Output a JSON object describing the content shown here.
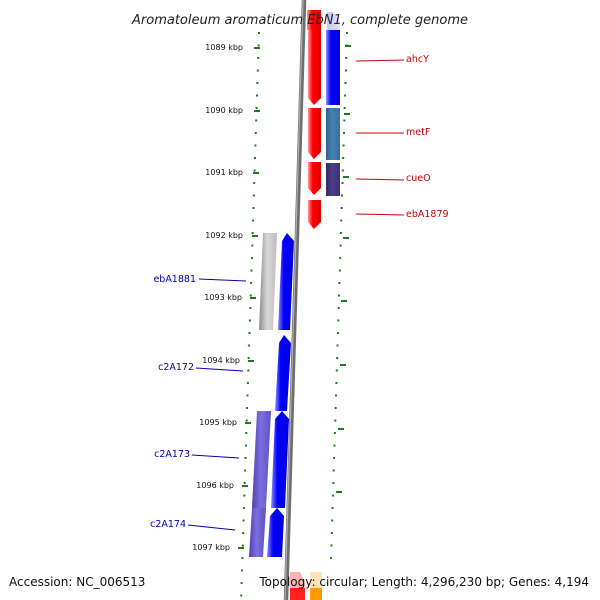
{
  "title": "Aromatoleum aromaticum EbN1, complete genome",
  "accession_label": "Accession: NC_006513",
  "topology_label": "Topology: circular; Length: 4,296,230 bp; Genes: 4,194",
  "ruler": {
    "labels": [
      "1089 kbp",
      "1090 kbp",
      "1091 kbp",
      "1092 kbp",
      "1093 kbp",
      "1094 kbp",
      "1095 kbp",
      "1096 kbp",
      "1097 kbp"
    ]
  },
  "genes_right": [
    {
      "name": "ahcY",
      "color": "#cc0000"
    },
    {
      "name": "metF",
      "color": "#cc0000"
    },
    {
      "name": "cueO",
      "color": "#cc0000"
    },
    {
      "name": "ebA1879",
      "color": "#cc0000"
    }
  ],
  "genes_left": [
    {
      "name": "ebA1881",
      "color": "#0000bb"
    },
    {
      "name": "c2A172",
      "color": "#0000bb"
    },
    {
      "name": "c2A173",
      "color": "#0000bb"
    },
    {
      "name": "c2A174",
      "color": "#0000bb"
    }
  ],
  "colors": {
    "forward_gene": "#ff0000",
    "reverse_gene": "#0000ff",
    "backbone": "#808080",
    "ruler_ticks": "#1f7a1f",
    "pseudo_gene": "#c8c8c8",
    "steel_gene": "#4682b4",
    "purple_gene": "#483d8b",
    "lavender_gene": "#6a5acd"
  }
}
